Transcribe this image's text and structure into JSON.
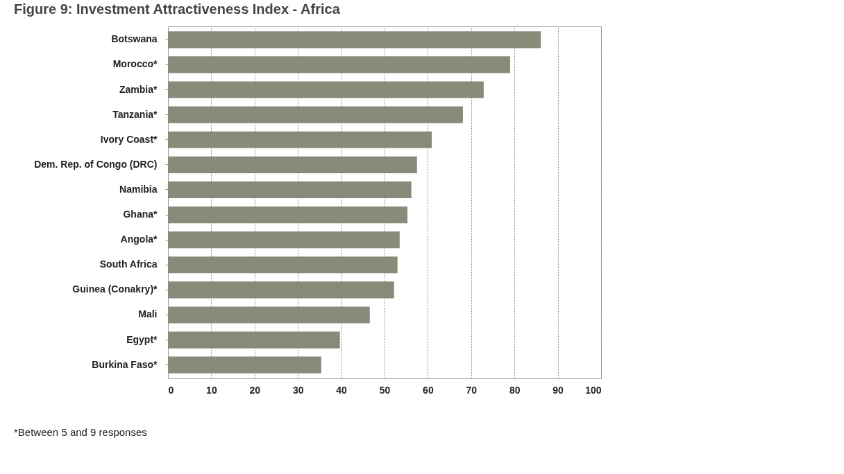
{
  "chart_data": {
    "type": "bar",
    "orientation": "horizontal",
    "title": "Figure 9: Investment Attractiveness Index - Africa",
    "categories": [
      "Botswana",
      "Morocco*",
      "Zambia*",
      "Tanzania*",
      "Ivory Coast*",
      "Dem. Rep. of Congo (DRC)",
      "Namibia",
      "Ghana*",
      "Angola*",
      "South Africa",
      "Guinea (Conakry)*",
      "Mali",
      "Egypt*",
      "Burkina Faso*"
    ],
    "values": [
      86.1,
      79.0,
      72.9,
      68.1,
      60.9,
      57.5,
      56.2,
      55.3,
      53.5,
      53.0,
      52.2,
      46.6,
      39.7,
      35.4
    ],
    "color": "#898b7a",
    "xlim": [
      0,
      100
    ],
    "xticks": [
      0,
      10,
      20,
      30,
      40,
      50,
      60,
      70,
      80,
      90,
      100
    ],
    "grid": "x",
    "annotations": [
      "*Between 5 and 9 responses"
    ]
  }
}
